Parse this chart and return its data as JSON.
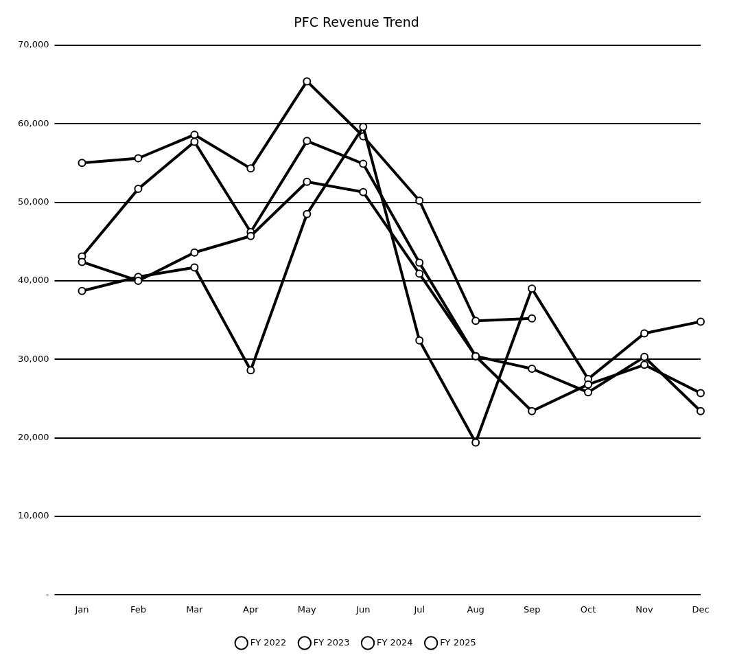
{
  "chart_data": {
    "type": "line",
    "title": "PFC Revenue Trend",
    "categories": [
      "Jan",
      "Feb",
      "Mar",
      "Apr",
      "May",
      "Jun",
      "Jul",
      "Aug",
      "Sep",
      "Oct",
      "Nov",
      "Dec"
    ],
    "series": [
      {
        "name": "FY 2022",
        "color": "#000000",
        "values": [
          42400,
          40000,
          43600,
          45700,
          52600,
          51300,
          40900,
          30400,
          23400,
          26800,
          29300,
          25700
        ]
      },
      {
        "name": "FY 2023",
        "color": "#000000",
        "values": [
          43100,
          51700,
          57700,
          46200,
          57800,
          54900,
          42300,
          30400,
          28800,
          25800,
          30300,
          23400
        ]
      },
      {
        "name": "FY 2024",
        "color": "#000000",
        "values": [
          38700,
          40500,
          41700,
          28600,
          48500,
          59600,
          32400,
          19400,
          39000,
          27500,
          33300,
          34800
        ]
      },
      {
        "name": "FY 2025",
        "color": "#000000",
        "values": [
          55000,
          55600,
          58600,
          54300,
          65400,
          58400,
          50200,
          34900,
          35200,
          null,
          null,
          null
        ]
      }
    ],
    "ylim": [
      0,
      70000
    ],
    "yticks": [
      {
        "value": 0,
        "label": "-"
      },
      {
        "value": 10000,
        "label": "10,000"
      },
      {
        "value": 20000,
        "label": "20,000"
      },
      {
        "value": 30000,
        "label": "30,000"
      },
      {
        "value": 40000,
        "label": "40,000"
      },
      {
        "value": 50000,
        "label": "50,000"
      },
      {
        "value": 60000,
        "label": "60,000"
      },
      {
        "value": 70000,
        "label": "70,000"
      }
    ],
    "grid": "y",
    "legend": "bottom",
    "marker": "circle",
    "line_style": "solid"
  }
}
